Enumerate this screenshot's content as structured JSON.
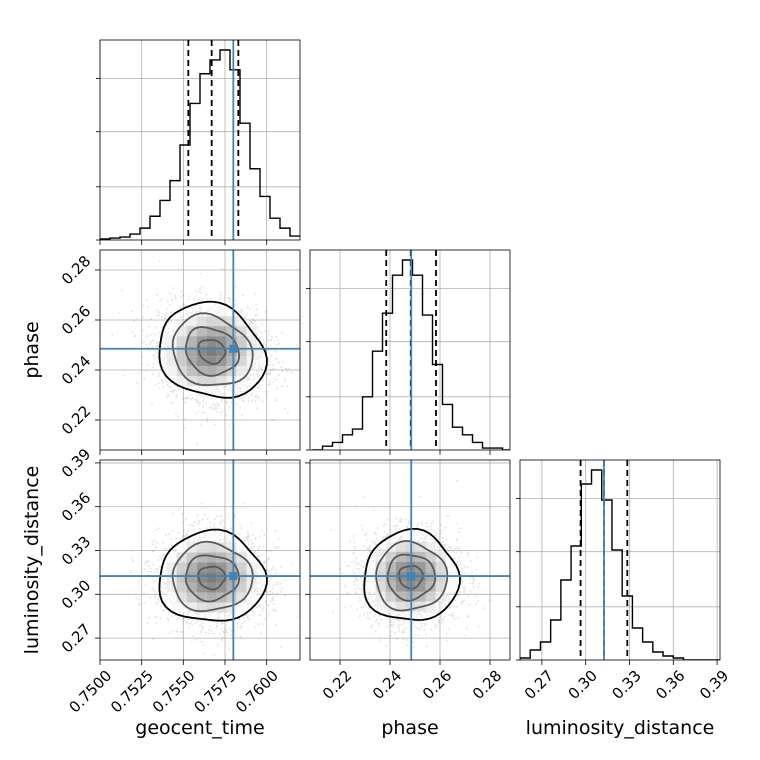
{
  "chart_data": {
    "type": "corner",
    "parameters": [
      "geocent_time",
      "phase",
      "luminosity_distance"
    ],
    "axis_labels": {
      "geocent_time": "geocent_time",
      "phase": "phase",
      "luminosity_distance": "luminosity_distance"
    },
    "ranges": {
      "geocent_time": [
        0.75,
        0.762
      ],
      "phase": [
        0.208,
        0.288
      ],
      "luminosity_distance": [
        0.255,
        0.392
      ]
    },
    "ticks": {
      "geocent_time": [
        {
          "value": 0.75,
          "label": "0.7500"
        },
        {
          "value": 0.7525,
          "label": "0.7525"
        },
        {
          "value": 0.755,
          "label": "0.7550"
        },
        {
          "value": 0.7575,
          "label": "0.7575"
        },
        {
          "value": 0.76,
          "label": "0.7600"
        }
      ],
      "phase": [
        {
          "value": 0.22,
          "label": "0.22"
        },
        {
          "value": 0.24,
          "label": "0.24"
        },
        {
          "value": 0.26,
          "label": "0.26"
        },
        {
          "value": 0.28,
          "label": "0.28"
        }
      ],
      "luminosity_distance": [
        {
          "value": 0.27,
          "label": "0.27"
        },
        {
          "value": 0.3,
          "label": "0.30"
        },
        {
          "value": 0.33,
          "label": "0.33"
        },
        {
          "value": 0.36,
          "label": "0.36"
        },
        {
          "value": 0.39,
          "label": "0.39"
        }
      ]
    },
    "truths": {
      "geocent_time": 0.758,
      "phase": 0.2485,
      "luminosity_distance": 0.3125
    },
    "stats": {
      "geocent_time": {
        "median": 0.7567,
        "q16": 0.7553,
        "q84": 0.7583
      },
      "phase": {
        "median": 0.2483,
        "q16": 0.2385,
        "q84": 0.2584
      },
      "luminosity_distance": {
        "median": 0.3125,
        "q16": 0.2965,
        "q84": 0.3285
      }
    },
    "histograms": {
      "geocent_time": {
        "bin_start": 0.75,
        "bin_width": 0.0006,
        "counts": [
          0.005,
          0.01,
          0.015,
          0.03,
          0.06,
          0.12,
          0.2,
          0.3,
          0.48,
          0.69,
          0.84,
          0.91,
          0.96,
          0.86,
          0.59,
          0.36,
          0.22,
          0.11,
          0.06,
          0.02
        ]
      },
      "phase": {
        "bin_start": 0.209,
        "bin_width": 0.004,
        "counts": [
          0.0,
          0.02,
          0.04,
          0.08,
          0.11,
          0.28,
          0.52,
          0.72,
          0.92,
          1.0,
          0.92,
          0.71,
          0.45,
          0.24,
          0.12,
          0.08,
          0.04,
          0.01,
          0.01,
          0.0
        ]
      },
      "luminosity_distance": {
        "bin_start": 0.255,
        "bin_width": 0.007,
        "counts": [
          0.01,
          0.05,
          0.09,
          0.2,
          0.4,
          0.57,
          0.88,
          0.95,
          0.8,
          0.55,
          0.32,
          0.16,
          0.09,
          0.04,
          0.02,
          0.01,
          0.0,
          0.0,
          0.0,
          0.0
        ]
      }
    },
    "density_2d": {
      "phase_vs_geocent_time": {
        "x": "geocent_time",
        "y": "phase",
        "center": [
          0.7567,
          0.2475
        ],
        "sigma": [
          0.0016,
          0.0095
        ],
        "corr": -0.15
      },
      "luminosity_distance_vs_geocent_time": {
        "x": "geocent_time",
        "y": "luminosity_distance",
        "center": [
          0.7567,
          0.3115
        ],
        "sigma": [
          0.0016,
          0.0155
        ],
        "corr": 0.0
      },
      "luminosity_distance_vs_phase": {
        "x": "phase",
        "y": "luminosity_distance",
        "center": [
          0.2483,
          0.312
        ],
        "sigma": [
          0.0095,
          0.0155
        ],
        "corr": 0.0
      }
    },
    "truth_color": "#4682b4",
    "line_color": "#000000",
    "grid": true
  }
}
